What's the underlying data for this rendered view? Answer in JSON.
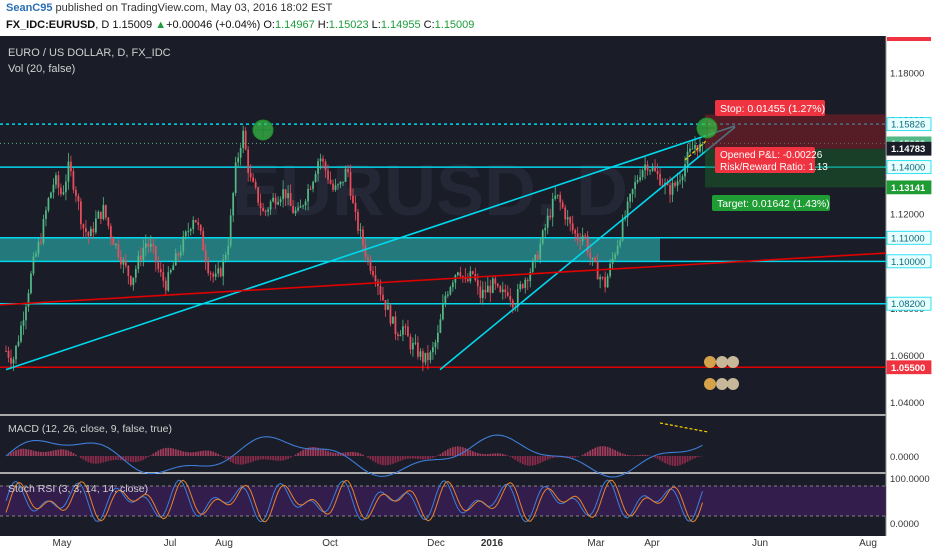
{
  "header": {
    "user": "SeanC95",
    "published": "published on TradingView.com, May 03, 2016 18:02 EST",
    "symbol": "FX_IDC:EURUSD",
    "timeframe": "D",
    "close": "1.15009",
    "change_arrow": "▲",
    "change": "+0.00046 (+0.04%)",
    "o_label": "O:",
    "o": "1.14967",
    "h_label": "H:",
    "h": "1.15023",
    "l_label": "L:",
    "l": "1.14955",
    "c_label": "C:",
    "c": "1.15009"
  },
  "colors": {
    "up": "#53b987",
    "down": "#eb4d5c",
    "trend": "#00d8ee",
    "support": "#e00000",
    "zone": "#2ec4c4",
    "stop_bg": "#ef3340",
    "target_bg": "#1f9c34",
    "osc_band": "#3b1e5a"
  },
  "chart_data": {
    "type": "candlestick",
    "title": "EURO / US DOLLAR, D, FX_IDC",
    "volume_indicator": "Vol (20, false)",
    "watermark": "EURUSD, D",
    "x_ticks": [
      "May",
      "Jul",
      "Aug",
      "Oct",
      "Dec",
      "2016",
      "Mar",
      "Apr",
      "Jun",
      "Aug"
    ],
    "y_ticks": [
      "1.18000",
      "1.16000",
      "1.14000",
      "1.12000",
      "1.10000",
      "1.08000",
      "1.06000",
      "1.04000"
    ],
    "ylim": [
      1.036,
      1.194
    ],
    "price_tags": [
      {
        "label": "1.15826",
        "value": 1.15826,
        "style": "trend"
      },
      {
        "label": "1.15009",
        "value": 1.15009,
        "style": "last"
      },
      {
        "label": "1.14783",
        "value": 1.14783,
        "style": "dark"
      },
      {
        "label": "1.14000",
        "value": 1.14,
        "style": "trend"
      },
      {
        "label": "1.13141",
        "value": 1.13141,
        "style": "target"
      },
      {
        "label": "1.11000",
        "value": 1.11,
        "style": "trend"
      },
      {
        "label": "1.10000",
        "value": 1.1,
        "style": "trend"
      },
      {
        "label": "1.08200",
        "value": 1.082,
        "style": "trend"
      },
      {
        "label": "1.05500",
        "value": 1.055,
        "style": "support"
      }
    ],
    "horizontal_levels": [
      1.15826,
      1.14,
      1.11,
      1.1,
      1.082,
      1.055
    ],
    "zone": {
      "top": 1.11,
      "bottom": 1.1
    },
    "position": {
      "stop": "Stop: 0.01455 (1.27%)",
      "pnl": "Opened P&L: -0.00226",
      "rr": "Risk/Reward Ratio: 1.13",
      "target": "Target: 0.01642 (1.43%)",
      "entry": 1.14783,
      "stop_price": 1.16238,
      "target_price": 1.13141
    },
    "candles_note": "approximate daily path Apr 2015 - May 2016",
    "price_path": [
      1.062,
      1.058,
      1.07,
      1.085,
      1.1,
      1.11,
      1.125,
      1.135,
      1.128,
      1.14,
      1.13,
      1.115,
      1.11,
      1.118,
      1.122,
      1.112,
      1.105,
      1.098,
      1.092,
      1.1,
      1.108,
      1.105,
      1.095,
      1.09,
      1.098,
      1.105,
      1.112,
      1.12,
      1.11,
      1.098,
      1.092,
      1.097,
      1.11,
      1.14,
      1.155,
      1.135,
      1.128,
      1.12,
      1.125,
      1.128,
      1.13,
      1.122,
      1.12,
      1.128,
      1.135,
      1.145,
      1.138,
      1.13,
      1.132,
      1.14,
      1.12,
      1.11,
      1.1,
      1.095,
      1.085,
      1.078,
      1.07,
      1.072,
      1.065,
      1.062,
      1.058,
      1.06,
      1.068,
      1.085,
      1.092,
      1.098,
      1.09,
      1.095,
      1.085,
      1.088,
      1.09,
      1.085,
      1.088,
      1.082,
      1.09,
      1.095,
      1.1,
      1.11,
      1.12,
      1.128,
      1.122,
      1.115,
      1.11,
      1.112,
      1.1,
      1.095,
      1.09,
      1.1,
      1.11,
      1.12,
      1.13,
      1.138,
      1.142,
      1.138,
      1.135,
      1.13,
      1.132,
      1.138,
      1.145,
      1.15,
      1.147
    ],
    "macd": {
      "label": "MACD (12, 26, close, 9, false, true)",
      "y_ticks": [
        "0.0000"
      ]
    },
    "stoch_rsi": {
      "label": "Stoch RSI (3, 3, 14, 14, close)",
      "y_ticks": [
        "100.0000",
        "0.0000"
      ]
    }
  }
}
